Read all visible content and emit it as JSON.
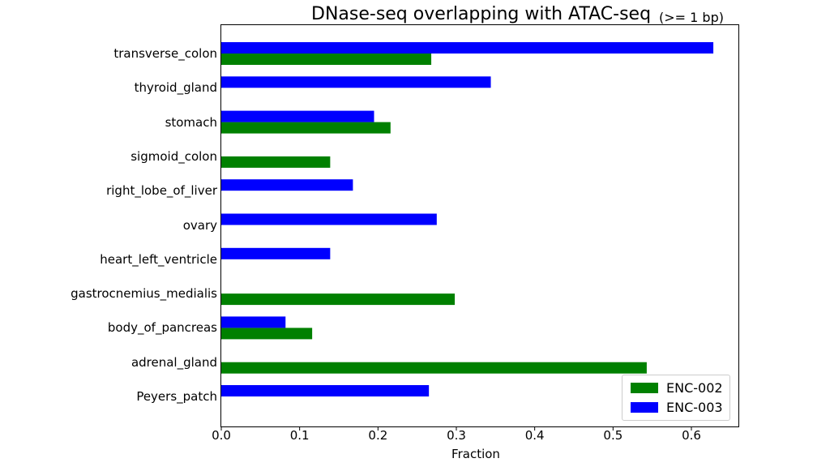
{
  "chart_data": {
    "type": "bar",
    "orientation": "horizontal",
    "title": "DNase-seq overlapping with ATAC-seq",
    "subtitle": "(>= 1 bp)",
    "xlabel": "Fraction",
    "ylabel": "",
    "xlim": [
      0,
      0.66
    ],
    "xticks": [
      "0.0",
      "0.1",
      "0.2",
      "0.3",
      "0.4",
      "0.5",
      "0.6"
    ],
    "grid": false,
    "legend_position": "bottom-right",
    "categories": [
      "transverse_colon",
      "thyroid_gland",
      "stomach",
      "sigmoid_colon",
      "right_lobe_of_liver",
      "ovary",
      "heart_left_ventricle",
      "gastrocnemius_medialis",
      "body_of_pancreas",
      "adrenal_gland",
      "Peyers_patch"
    ],
    "series": [
      {
        "name": "ENC-002",
        "color": "#008000",
        "values": [
          0.268,
          null,
          0.216,
          0.139,
          null,
          null,
          null,
          0.298,
          0.116,
          0.543,
          null
        ]
      },
      {
        "name": "ENC-003",
        "color": "#0000ff",
        "values": [
          0.628,
          0.344,
          0.195,
          null,
          0.168,
          0.275,
          0.139,
          null,
          0.082,
          null,
          0.265
        ]
      }
    ]
  }
}
